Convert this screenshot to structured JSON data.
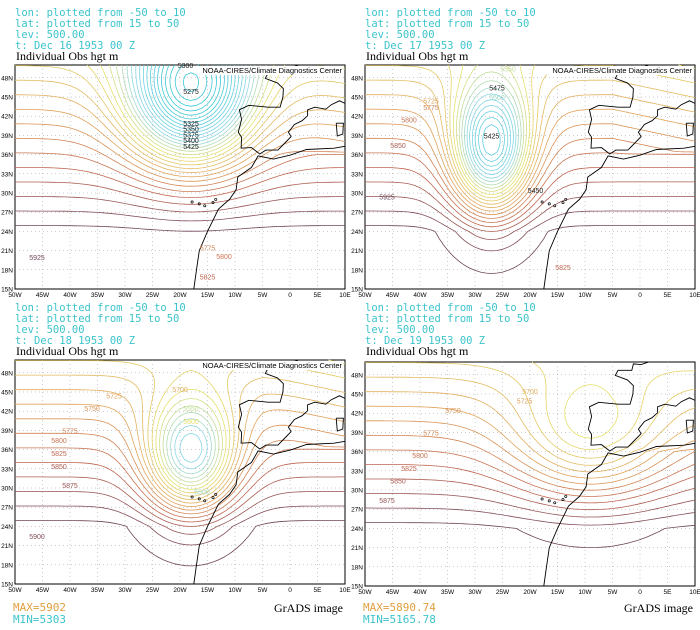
{
  "panels": [
    {
      "header": [
        "lon: plotted from -50 to 10",
        "lat: plotted from 15 to 50",
        "lev: 500.00",
        "t: Dec 16 1953 00 Z"
      ],
      "title": "Individual Obs hgt m",
      "credit": "NOAA-CIRES/Climate Diagnostics Center",
      "contour_labels": [
        "5300",
        "5275",
        "5325",
        "5350",
        "5375",
        "5400",
        "5425",
        "5775",
        "5800",
        "5825",
        "5925"
      ]
    },
    {
      "header": [
        "lon: plotted from -50 to 10",
        "lat: plotted from 15 to 50",
        "lev: 500.00",
        "t: Dec 17 1953 00 Z"
      ],
      "title": "Individual Obs hgt m",
      "credit": "NOAA-CIRES/Climate Diagnostics Center",
      "contour_labels": [
        "5550",
        "5500",
        "5475",
        "5425",
        "5450",
        "5725",
        "5775",
        "5800",
        "5850",
        "5925",
        "5825"
      ]
    },
    {
      "header": [
        "lon: plotted from -50 to 10",
        "lat: plotted from 15 to 50",
        "lev: 500.00",
        "t: Dec 18 1953 00 Z"
      ],
      "title": "Individual Obs hgt m",
      "credit": "NOAA-CIRES/Climate Diagnostics Center",
      "contour_labels": [
        "5700",
        "5725",
        "5750",
        "5775",
        "5800",
        "5825",
        "5850",
        "5875",
        "5900",
        "5550",
        "5600",
        "5500"
      ]
    },
    {
      "header": [
        "lon: plotted from -50 to 10",
        "lat: plotted from 15 to 50",
        "lev: 500.00",
        "t: Dec 19 1953 00 Z"
      ],
      "title": "Individual Obs hgt m",
      "contour_labels": [
        "5700",
        "5725",
        "5750",
        "5775",
        "5800",
        "5825",
        "5850",
        "5875"
      ]
    }
  ],
  "x_labels": [
    "50W",
    "45W",
    "40W",
    "35W",
    "30W",
    "25W",
    "20W",
    "15W",
    "10W",
    "5W",
    "0",
    "5E",
    "10E"
  ],
  "y_labels": [
    "15N",
    "18N",
    "21N",
    "24N",
    "27N",
    "30N",
    "33N",
    "36N",
    "39N",
    "42N",
    "45N",
    "48N"
  ],
  "footer": [
    {
      "max": "MAX=5902",
      "min": "MIN=5303",
      "image": "GrADS image"
    },
    {
      "max": "MAX=5890.74",
      "min": "MIN=5165.78",
      "image": "GrADS image"
    }
  ]
}
